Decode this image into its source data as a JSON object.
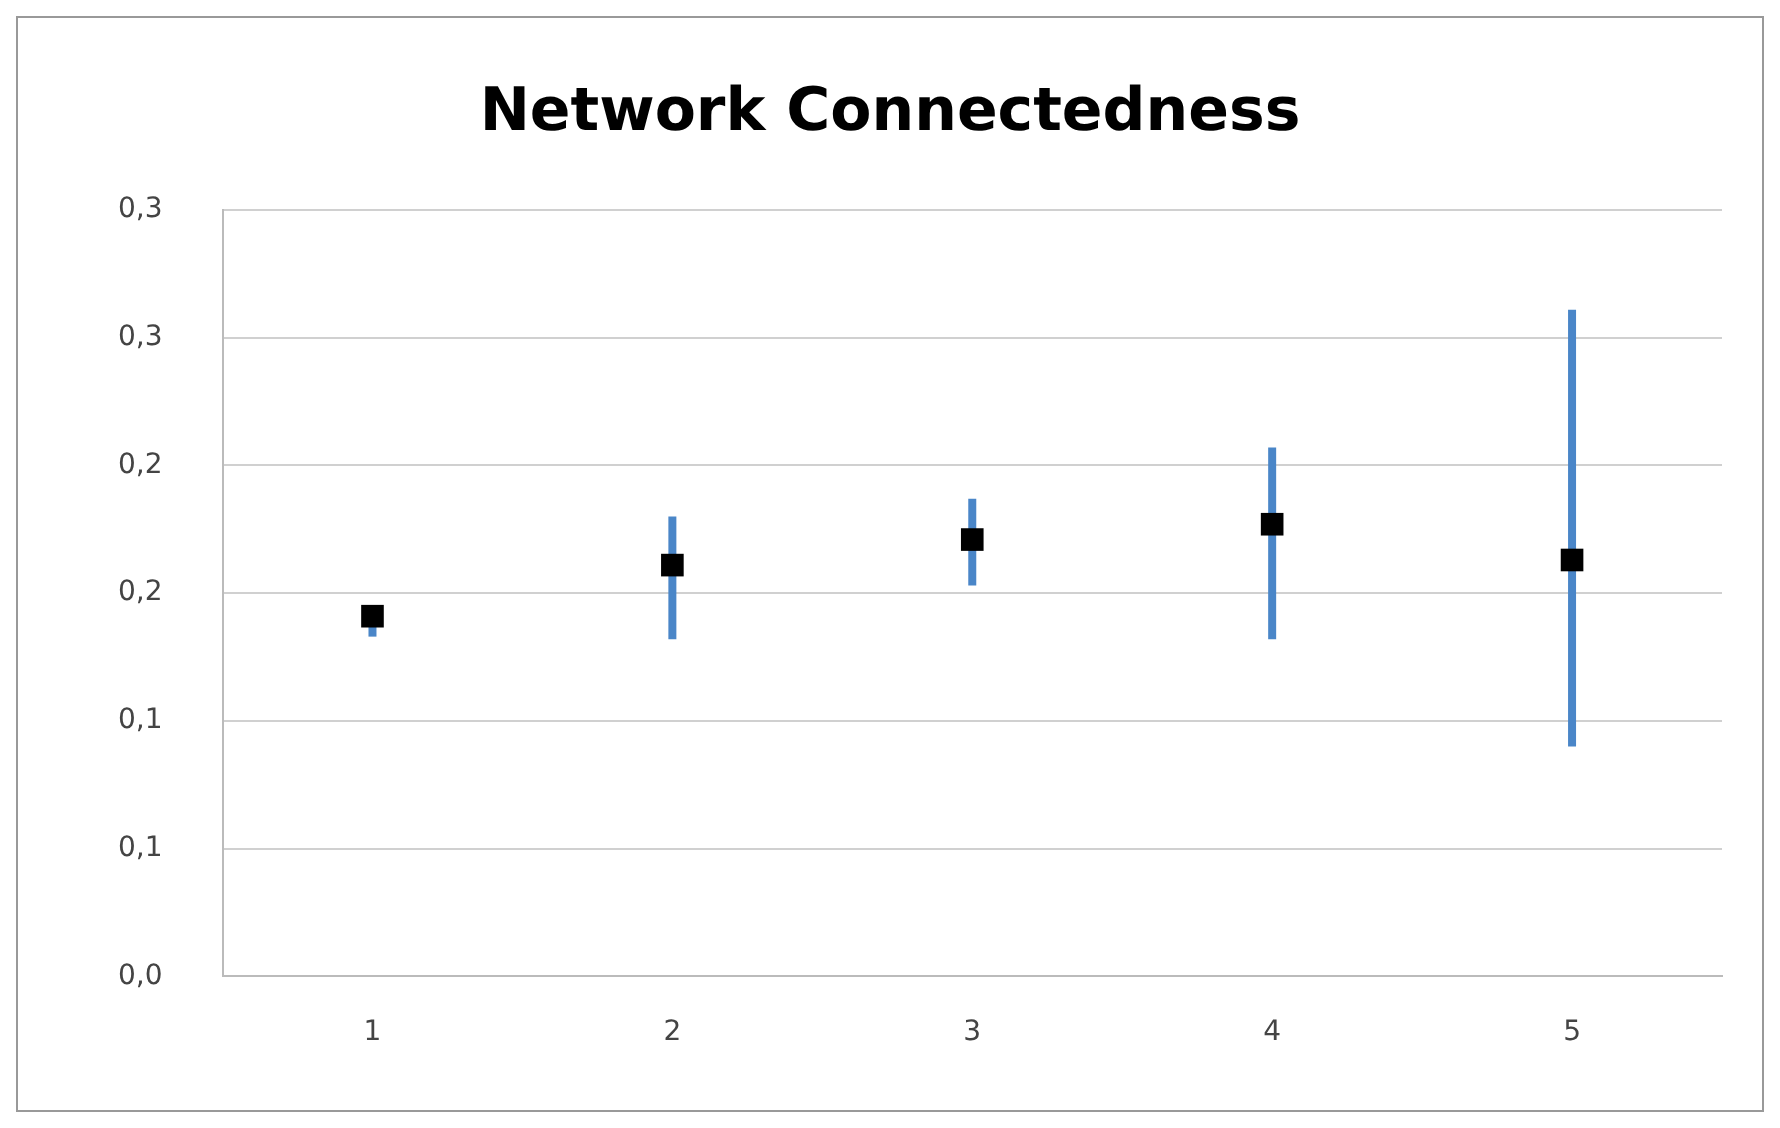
{
  "chart_data": {
    "type": "scatter",
    "title": "Network Connectedness",
    "categories": [
      "1",
      "2",
      "3",
      "4",
      "5"
    ],
    "values": [
      0.141,
      0.161,
      0.171,
      0.177,
      0.163
    ],
    "errors": [
      [
        0.133,
        0.145
      ],
      [
        0.132,
        0.18
      ],
      [
        0.153,
        0.187
      ],
      [
        0.132,
        0.207
      ],
      [
        0.09,
        0.261
      ]
    ],
    "color": "#000000",
    "ylim": [
      0,
      0.3
    ],
    "yticks": [
      {
        "value": 0,
        "label": "0,0"
      },
      {
        "value": 0.05,
        "label": "0,1"
      },
      {
        "value": 0.1,
        "label": "0,1"
      },
      {
        "value": 0.15,
        "label": "0,2"
      },
      {
        "value": 0.2,
        "label": "0,2"
      },
      {
        "value": 0.25,
        "label": "0,3"
      },
      {
        "value": 0.3,
        "label": "0,3"
      }
    ],
    "grid": "y",
    "legend": false,
    "marker": "square"
  }
}
